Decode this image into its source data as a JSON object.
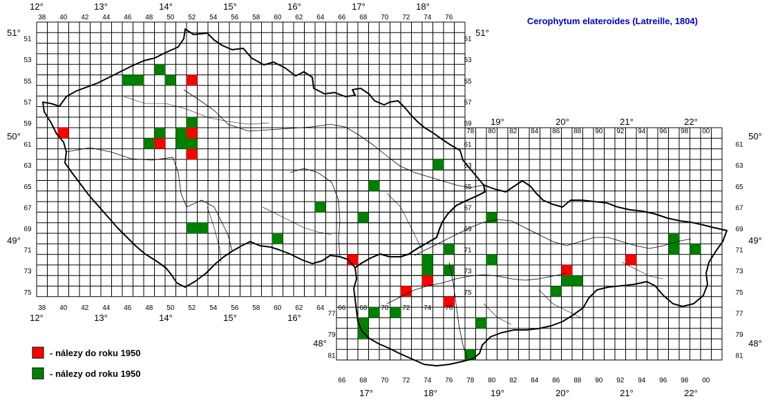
{
  "title": "Cerophytum elateroides (Latreille, 1804)",
  "legend": [
    {
      "label": "- nálezy do roku 1950",
      "color": "#ff0000"
    },
    {
      "label": "- nálezy od roku 1950",
      "color": "#008000"
    }
  ],
  "grid": {
    "cz_columns": [
      "38",
      "40",
      "42",
      "44",
      "46",
      "48",
      "50",
      "52",
      "54",
      "56",
      "58",
      "60",
      "62",
      "64",
      "66",
      "68",
      "70",
      "72",
      "74",
      "76"
    ],
    "cz_rows": [
      "51",
      "53",
      "55",
      "57",
      "59",
      "61",
      "63",
      "65",
      "67",
      "69",
      "71",
      "73",
      "75"
    ],
    "sk_columns": [
      "66",
      "68",
      "70",
      "72",
      "74",
      "76",
      "78",
      "80",
      "82",
      "84",
      "86",
      "88",
      "90",
      "92",
      "94",
      "96",
      "98",
      "00"
    ],
    "sk_columns_top": [
      "78",
      "80",
      "82",
      "84",
      "86",
      "88",
      "90",
      "92",
      "94",
      "96",
      "98",
      "00"
    ],
    "sk_rows": [
      "61",
      "63",
      "65",
      "67",
      "69",
      "71",
      "73",
      "75",
      "77",
      "79",
      "81"
    ]
  },
  "longitudes_top": [
    "12°",
    "13°",
    "14°",
    "15°",
    "16°",
    "17°",
    "18°"
  ],
  "longitudes_bottom": [
    "12°",
    "13°",
    "14°",
    "15°",
    "16°"
  ],
  "longitudes_sk_top": [
    "19°",
    "20°",
    "21°",
    "22°"
  ],
  "longitudes_sk_bottom": [
    "17°",
    "18°",
    "19°",
    "20°",
    "21°",
    "22°"
  ],
  "latitudes": {
    "lat51": "51°",
    "lat50": "50°",
    "lat49": "49°",
    "lat48": "48°"
  },
  "records": [
    {
      "col": "52",
      "row": "55",
      "period": "before"
    },
    {
      "col": "40",
      "row": "60",
      "period": "before"
    },
    {
      "col": "49",
      "row": "61",
      "period": "before"
    },
    {
      "col": "52",
      "row": "60",
      "period": "before"
    },
    {
      "col": "52",
      "row": "62",
      "period": "before"
    },
    {
      "col": "67",
      "row": "72",
      "period": "before"
    },
    {
      "col": "74",
      "row": "74",
      "period": "before"
    },
    {
      "col": "72",
      "row": "75",
      "period": "before"
    },
    {
      "col": "76",
      "row": "76",
      "period": "before"
    },
    {
      "col": "87",
      "row": "73",
      "period": "before"
    },
    {
      "col": "93",
      "row": "72",
      "period": "before"
    },
    {
      "col": "46",
      "row": "55",
      "period": "since"
    },
    {
      "col": "47",
      "row": "55",
      "period": "since"
    },
    {
      "col": "49",
      "row": "54",
      "period": "since"
    },
    {
      "col": "50",
      "row": "55",
      "period": "since"
    },
    {
      "col": "49",
      "row": "60",
      "period": "since"
    },
    {
      "col": "48",
      "row": "61",
      "period": "since"
    },
    {
      "col": "51",
      "row": "60",
      "period": "since"
    },
    {
      "col": "51",
      "row": "61",
      "period": "since"
    },
    {
      "col": "52",
      "row": "59",
      "period": "since"
    },
    {
      "col": "52",
      "row": "61",
      "period": "since"
    },
    {
      "col": "52",
      "row": "69",
      "period": "since"
    },
    {
      "col": "53",
      "row": "69",
      "period": "since"
    },
    {
      "col": "60",
      "row": "70",
      "period": "since"
    },
    {
      "col": "64",
      "row": "67",
      "period": "since"
    },
    {
      "col": "68",
      "row": "68",
      "period": "since"
    },
    {
      "col": "69",
      "row": "65",
      "period": "since"
    },
    {
      "col": "75",
      "row": "63",
      "period": "since"
    },
    {
      "col": "80",
      "row": "68",
      "period": "since"
    },
    {
      "col": "76",
      "row": "71",
      "period": "since"
    },
    {
      "col": "74",
      "row": "72",
      "period": "since"
    },
    {
      "col": "74",
      "row": "73",
      "period": "since"
    },
    {
      "col": "76",
      "row": "73",
      "period": "since"
    },
    {
      "col": "80",
      "row": "72",
      "period": "since"
    },
    {
      "col": "87",
      "row": "74",
      "period": "since"
    },
    {
      "col": "88",
      "row": "74",
      "period": "since"
    },
    {
      "col": "86",
      "row": "75",
      "period": "since"
    },
    {
      "col": "97",
      "row": "70",
      "period": "since"
    },
    {
      "col": "97",
      "row": "71",
      "period": "since"
    },
    {
      "col": "99",
      "row": "71",
      "period": "since"
    },
    {
      "col": "69",
      "row": "77",
      "period": "since"
    },
    {
      "col": "68",
      "row": "78",
      "period": "since"
    },
    {
      "col": "71",
      "row": "77",
      "period": "since"
    },
    {
      "col": "68",
      "row": "79",
      "period": "since"
    },
    {
      "col": "79",
      "row": "78",
      "period": "since"
    },
    {
      "col": "78",
      "row": "81",
      "period": "since"
    }
  ]
}
